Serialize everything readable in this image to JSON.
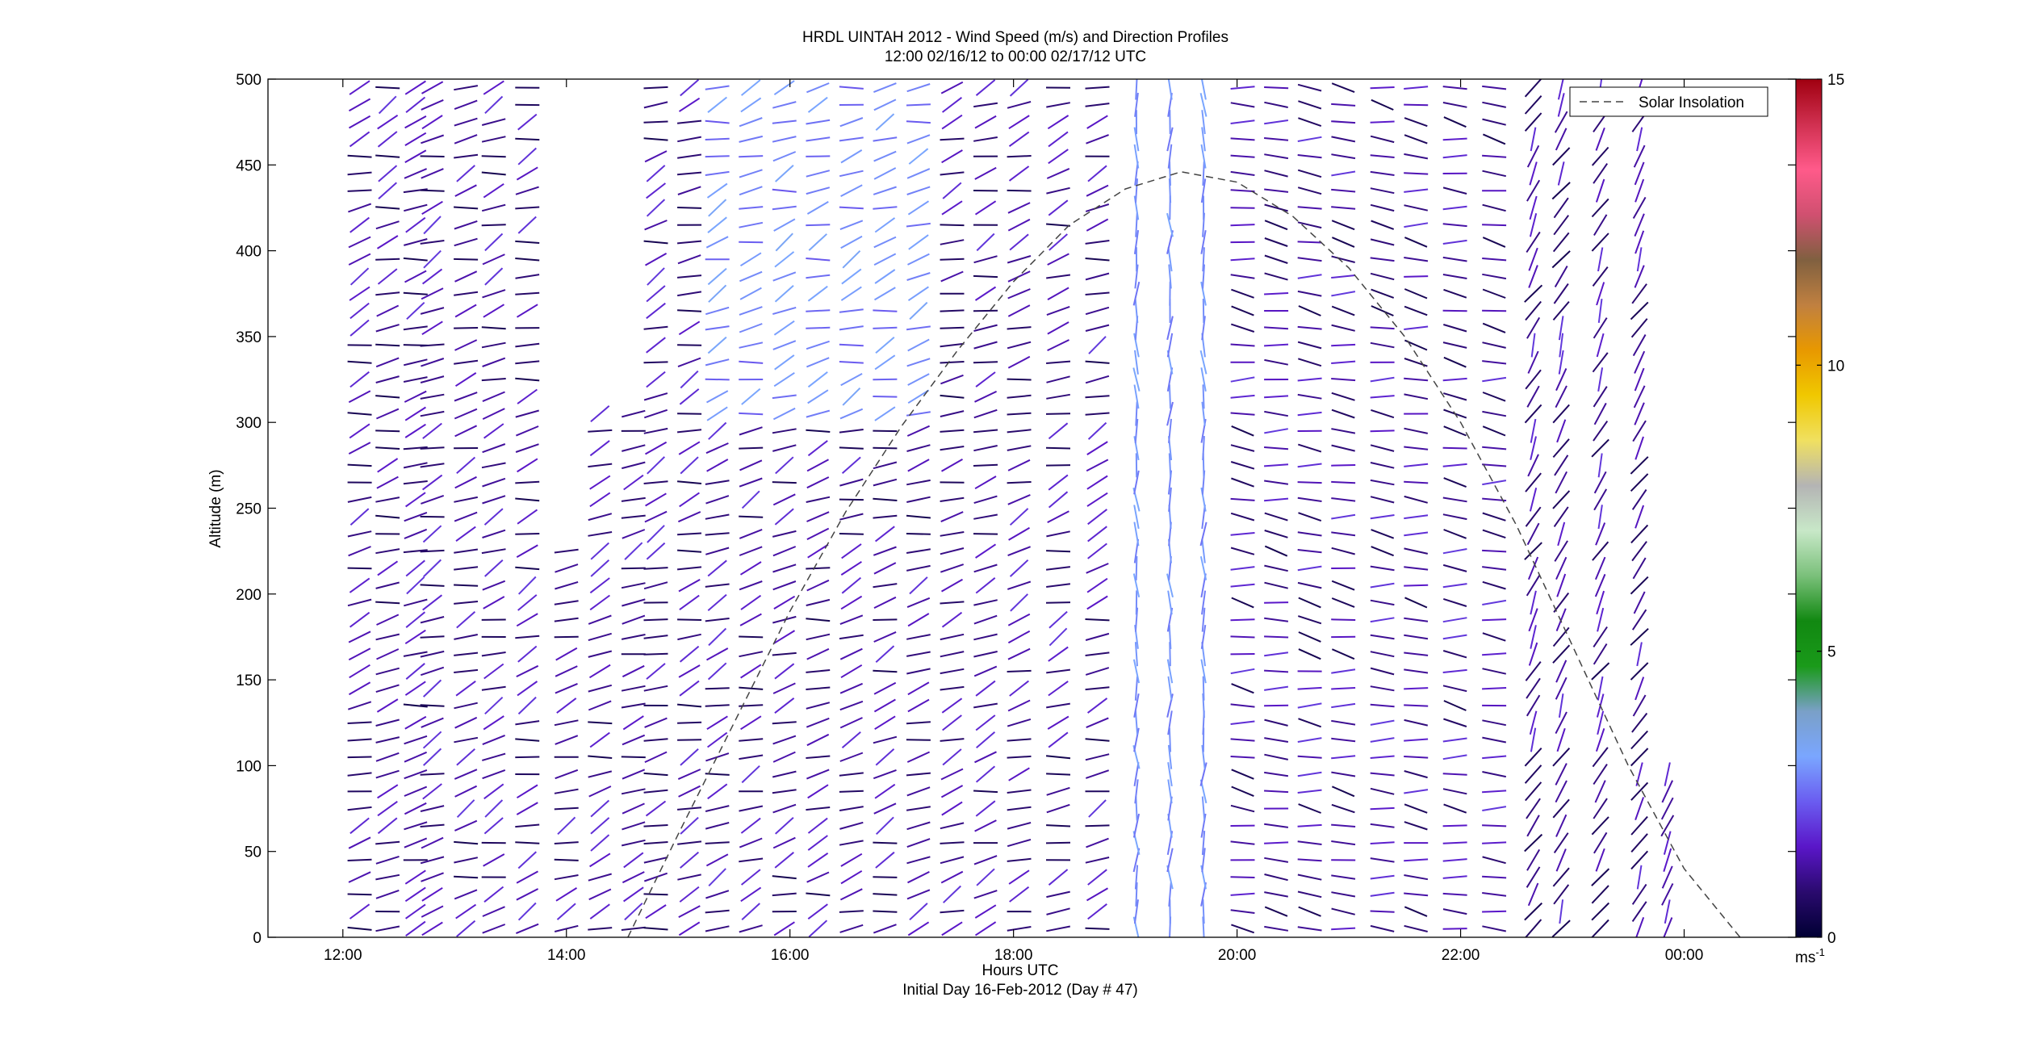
{
  "chart_data": {
    "type": "wind-barb-profile",
    "title": "HRDL UINTAH 2012 - Wind Speed (m/s) and Direction Profiles",
    "subtitle": "12:00 02/16/12 to 00:00 02/17/12  UTC",
    "xlabel": "Hours UTC",
    "xlabel2": "Initial Day 16-Feb-2012 (Day # 47)",
    "ylabel": "Altitude (m)",
    "xlim": [
      11.33,
      25.0
    ],
    "ylim": [
      0,
      500
    ],
    "x_ticks": [
      {
        "value": 12,
        "label": "12:00"
      },
      {
        "value": 14,
        "label": "14:00"
      },
      {
        "value": 16,
        "label": "16:00"
      },
      {
        "value": 18,
        "label": "18:00"
      },
      {
        "value": 20,
        "label": "20:00"
      },
      {
        "value": 22,
        "label": "22:00"
      },
      {
        "value": 24,
        "label": "00:00"
      }
    ],
    "y_ticks": [
      0,
      50,
      100,
      150,
      200,
      250,
      300,
      350,
      400,
      450,
      500
    ],
    "legend": {
      "entries": [
        "Solar Insolation"
      ],
      "position": "top-right"
    },
    "colorbar": {
      "min": 0,
      "max": 15,
      "ticks": [
        0,
        5,
        10,
        15
      ],
      "unit_label": "ms",
      "unit_exponent": "-1",
      "stops": [
        "#000033",
        "#2a0a6e",
        "#5a16c8",
        "#6a5cf0",
        "#7aa6ff",
        "#7aa0c8",
        "#1a9a1a",
        "#118811",
        "#7ac07a",
        "#c8e8c8",
        "#b4b4b4",
        "#f0e060",
        "#f0c800",
        "#e89800",
        "#c08040",
        "#806040",
        "#d05070",
        "#ff5a8a",
        "#d03050",
        "#a00010"
      ]
    },
    "solar_insolation": {
      "style": "dashed",
      "color": "#444444",
      "x": [
        14.55,
        15.0,
        15.5,
        16.0,
        16.5,
        17.0,
        17.5,
        18.0,
        18.5,
        19.0,
        19.5,
        20.0,
        20.5,
        21.0,
        21.5,
        22.0,
        22.5,
        23.0,
        23.5,
        24.0,
        24.5
      ],
      "altitude": [
        0,
        60,
        125,
        190,
        248,
        298,
        342,
        382,
        415,
        436,
        446,
        440,
        420,
        390,
        350,
        300,
        240,
        170,
        100,
        40,
        0
      ]
    },
    "profile_times": [
      12.15,
      12.4,
      12.65,
      12.8,
      13.1,
      13.35,
      13.65,
      14.0,
      14.3,
      14.6,
      14.8,
      15.1,
      15.35,
      15.65,
      15.95,
      16.25,
      16.55,
      16.85,
      17.15,
      17.45,
      17.75,
      18.05,
      18.4,
      18.75,
      19.1,
      19.4,
      19.7,
      20.05,
      20.35,
      20.65,
      20.95,
      21.3,
      21.6,
      21.95,
      22.3,
      22.65,
      22.9,
      23.25,
      23.6,
      23.85
    ],
    "altitude_levels": [
      5,
      15,
      25,
      35,
      45,
      55,
      65,
      75,
      85,
      95,
      105,
      115,
      125,
      135,
      145,
      155,
      165,
      175,
      185,
      195,
      205,
      215,
      225,
      235,
      245,
      255,
      265,
      275,
      285,
      295,
      305,
      315,
      325,
      335,
      345,
      355,
      365,
      375,
      385,
      395,
      405,
      415,
      425,
      435,
      445,
      455,
      465,
      475,
      485,
      495
    ]
  }
}
